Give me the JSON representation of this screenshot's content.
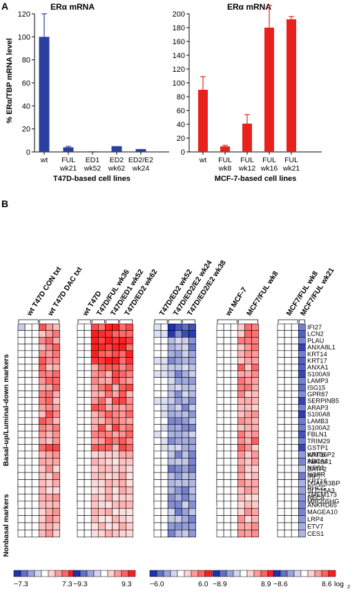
{
  "chart_data": [
    {
      "type": "bar",
      "panel": "A",
      "title": "ERα mRNA",
      "ylabel": "% ERα/TBP mRNA level",
      "xlabel": "T47D-based cell lines",
      "ylim": [
        0,
        120
      ],
      "yticks": [
        0,
        20,
        40,
        60,
        80,
        100,
        120
      ],
      "color": "#2b3fa0",
      "categories": [
        [
          "wt"
        ],
        [
          "FUL",
          "wk21"
        ],
        [
          "ED1",
          "wk52"
        ],
        [
          "ED2",
          "wk62"
        ],
        [
          "ED2/E2",
          "wk24"
        ]
      ],
      "values": [
        100,
        4,
        0.5,
        5,
        2.5
      ],
      "errors": [
        20,
        0.8,
        0.2,
        0.5,
        0.4
      ]
    },
    {
      "type": "bar",
      "panel": "A",
      "title": "ERα mRNA",
      "xlabel": "MCF-7-based cell lines",
      "ylim": [
        0,
        200
      ],
      "yticks": [
        0,
        20,
        40,
        60,
        80,
        100,
        120,
        140,
        160,
        180,
        200
      ],
      "color": "#e8211c",
      "categories": [
        [
          "wt"
        ],
        [
          "FUL",
          "wk8"
        ],
        [
          "FUL",
          "wk12"
        ],
        [
          "FUL",
          "wk16"
        ],
        [
          "FUL",
          "wk21"
        ]
      ],
      "values": [
        90,
        8,
        41,
        180,
        192
      ],
      "errors": [
        19,
        1.5,
        13,
        32,
        4
      ]
    },
    {
      "type": "heatmap",
      "panel": "B",
      "genes_basal": [
        "IFI27",
        "LCN2",
        "PLAU",
        "ANXA8L1",
        "KRT14",
        "KRT17",
        "ANXA1",
        "S100A9",
        "LAMP3",
        "ISG15",
        "GPR87",
        "SERPINB5",
        "ARAP3",
        "S100A8",
        "LAMB3",
        "S100A2",
        "FBLN1",
        "TRIM29",
        "GSTP1",
        "WNT6",
        "ABCA1",
        "NSG1",
        "NGFR",
        "KRT15",
        "RHCG",
        "TMEM173",
        "MIR205HG"
      ],
      "genes_nonbasal": [
        "KRT16P2",
        "TM4SF1",
        "BATF2",
        "IRF7",
        "LGALS3BP",
        "SLC15A3",
        "REC8",
        "ANKRD65",
        "MAGEA10",
        "LRP4",
        "ETV7",
        "CES1"
      ],
      "row_group_labels": [
        "Basal-up/Luminal-down markers",
        "Nonbasal markers"
      ],
      "blocks": [
        {
          "columns": [
            "wt T47D CON txt",
            "wt T47D DAC txt"
          ],
          "n_cols": 6,
          "replicate_groups": [
            3,
            3
          ],
          "scale_min": "−7.3",
          "scale_max": "7.3",
          "pattern": "dac"
        },
        {
          "columns": [
            "wt T47D",
            "T47D/FUL  wk36",
            "T47D/ED1  wk52",
            "T47D/ED2  wk62"
          ],
          "n_cols": 8,
          "replicate_groups": [
            2,
            2,
            2,
            2
          ],
          "scale_min": "−9.3",
          "scale_max": "9.3",
          "pattern": "t47d_up"
        },
        {
          "columns": [
            "T47D/ED2  wk52",
            "T47D/ED2/E2  wk24",
            "T47D/ED2/E2  wk38"
          ],
          "n_cols": 6,
          "replicate_groups": [
            2,
            2,
            2
          ],
          "scale_min": "−6.0",
          "scale_max": "6.0",
          "pattern": "t47d_down"
        },
        {
          "columns": [
            "wt MCF-7",
            "MCF7/FUL  wk8"
          ],
          "n_cols": 6,
          "replicate_groups": [
            3,
            3
          ],
          "scale_min": "−8.9",
          "scale_max": "8.9",
          "pattern": "mcf_up"
        },
        {
          "columns": [
            "MCF7/FUL  wk8",
            "MCF7/FUL  wk21"
          ],
          "n_cols": 4,
          "replicate_groups": [
            3,
            1
          ],
          "scale_min": "−8.6",
          "scale_max": "8.6",
          "scale_unit": "log",
          "scale_unit_sub": "2",
          "pattern": "mcf_down"
        }
      ]
    }
  ],
  "panel_labels": [
    "A",
    "B"
  ]
}
